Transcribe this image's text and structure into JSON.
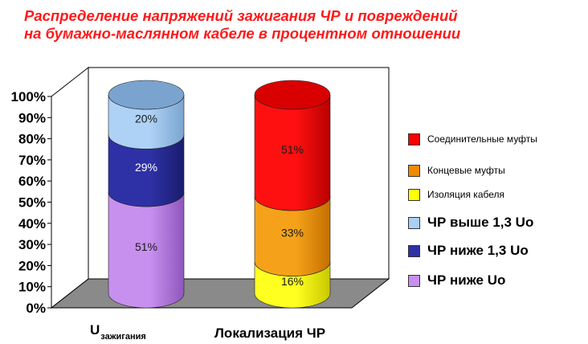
{
  "title_lines": [
    "Распределение напряжений зажигания ЧР и повреждений",
    "на бумажно-маслянном кабеле в процентном отношении"
  ],
  "chart_data": {
    "type": "bar",
    "style": "3d-stacked-cylinder",
    "categories": [
      "Uзажигания",
      "Локализация ЧР"
    ],
    "category_labels": [
      {
        "main": "U",
        "sub": "зажигания"
      },
      {
        "main": "Локализация ЧР",
        "sub": ""
      }
    ],
    "y_ticks": [
      "0%",
      "10%",
      "20%",
      "30%",
      "40%",
      "50%",
      "60%",
      "70%",
      "80%",
      "90%",
      "100%"
    ],
    "ylim": [
      0,
      100
    ],
    "grid": false,
    "legend_position": "right",
    "stacks": [
      {
        "category": "Uзажигания",
        "segments": [
          {
            "name": "ЧР ниже Uo",
            "value": 51,
            "label": "51%",
            "color": "#c890ee",
            "dark": "#8f57bd"
          },
          {
            "name": "ЧР ниже 1,3 Uo",
            "value": 29,
            "label": "29%",
            "color": "#2e31a6",
            "dark": "#1a1c6d"
          },
          {
            "name": "ЧР выше 1,3 Uo",
            "value": 20,
            "label": "20%",
            "color": "#aed2f5",
            "dark": "#7aa5cf"
          }
        ],
        "top_color": "#7ba3cf"
      },
      {
        "category": "Локализация ЧР",
        "segments": [
          {
            "name": "Изоляция кабеля",
            "value": 16,
            "label": "16%",
            "color": "#ffff20",
            "dark": "#c8c800"
          },
          {
            "name": "Концевые муфты",
            "value": 33,
            "label": "33%",
            "color": "#f5a21a",
            "dark": "#c46f00"
          },
          {
            "name": "Соединительные муфты",
            "value": 51,
            "label": "51%",
            "color": "#ff1010",
            "dark": "#b80000"
          }
        ],
        "top_color": "#d80000"
      }
    ],
    "legend": [
      {
        "label": "Соединительные муфты",
        "color": "#ff0000",
        "size": "small"
      },
      {
        "label": "Концевые муфты",
        "color": "#f28a00",
        "size": "small"
      },
      {
        "label": "Изоляция кабеля",
        "color": "#ffff00",
        "size": "small"
      },
      {
        "label": "ЧР выше 1,3 Uo",
        "color": "#a9d0f5",
        "size": "big"
      },
      {
        "label": "ЧР ниже 1,3 Uo",
        "color": "#2e31a6",
        "size": "big"
      },
      {
        "label": "ЧР ниже Uo",
        "color": "#c890ee",
        "size": "big"
      }
    ]
  }
}
